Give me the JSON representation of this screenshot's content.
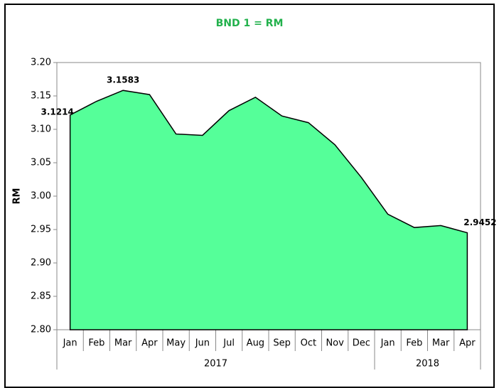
{
  "chart_data": {
    "type": "area",
    "title": "BND 1 = RM",
    "y_label": "RM",
    "groups": [
      {
        "name": "2017",
        "categories": [
          "Jan",
          "Feb",
          "Mar",
          "Apr",
          "May",
          "Jun",
          "Jul",
          "Aug",
          "Sep",
          "Oct",
          "Nov",
          "Dec"
        ]
      },
      {
        "name": "2018",
        "categories": [
          "Jan",
          "Feb",
          "Mar",
          "Apr"
        ]
      }
    ],
    "series": [
      {
        "name": "RM",
        "color": "#55ff99",
        "values": [
          3.1214,
          3.142,
          3.1583,
          3.152,
          3.093,
          3.091,
          3.128,
          3.148,
          3.12,
          3.11,
          3.077,
          3.028,
          2.973,
          2.953,
          2.956,
          2.9452
        ],
        "value_labels": [
          "3.1214",
          null,
          "3.1583",
          null,
          null,
          null,
          null,
          null,
          null,
          null,
          null,
          null,
          null,
          null,
          null,
          "2.9452"
        ]
      }
    ],
    "ylim": [
      2.8,
      3.2
    ],
    "yticks": [
      {
        "value": 2.8,
        "label": "2.80"
      },
      {
        "value": 2.85,
        "label": "2.85"
      },
      {
        "value": 2.9,
        "label": "2.90"
      },
      {
        "value": 2.95,
        "label": "2.95"
      },
      {
        "value": 3.0,
        "label": "3.00"
      },
      {
        "value": 3.05,
        "label": "3.05"
      },
      {
        "value": 3.1,
        "label": "3.10"
      },
      {
        "value": 3.15,
        "label": "3.15"
      },
      {
        "value": 3.2,
        "label": "3.20"
      }
    ],
    "grid": false
  }
}
